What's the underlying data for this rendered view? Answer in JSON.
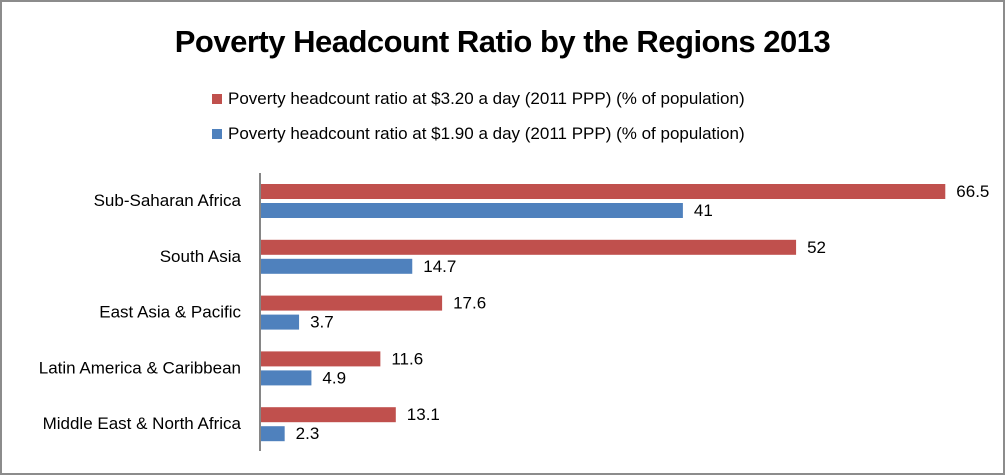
{
  "chart_data": {
    "type": "bar",
    "orientation": "horizontal",
    "title": "Poverty Headcount Ratio by the Regions 2013",
    "xlabel": "",
    "ylabel": "",
    "xlim": [
      0,
      70
    ],
    "grid": false,
    "legend_position": "top",
    "categories": [
      "Sub-Saharan Africa",
      "South Asia",
      "East Asia & Pacific",
      "Latin America & Caribbean",
      "Middle East & North Africa"
    ],
    "series": [
      {
        "name": "Poverty headcount ratio at $3.20 a day (2011 PPP) (% of population)",
        "color": "#c0504d",
        "values": [
          66.5,
          52,
          17.6,
          11.6,
          13.1
        ],
        "labels": [
          "66.5",
          "52",
          "17.6",
          "11.6",
          "13.1"
        ]
      },
      {
        "name": "Poverty headcount ratio at $1.90 a day (2011 PPP) (% of population)",
        "color": "#4f81bd",
        "values": [
          41,
          14.7,
          3.7,
          4.9,
          2.3
        ],
        "labels": [
          "41",
          "14.7",
          "3.7",
          "4.9",
          "2.3"
        ]
      }
    ]
  }
}
